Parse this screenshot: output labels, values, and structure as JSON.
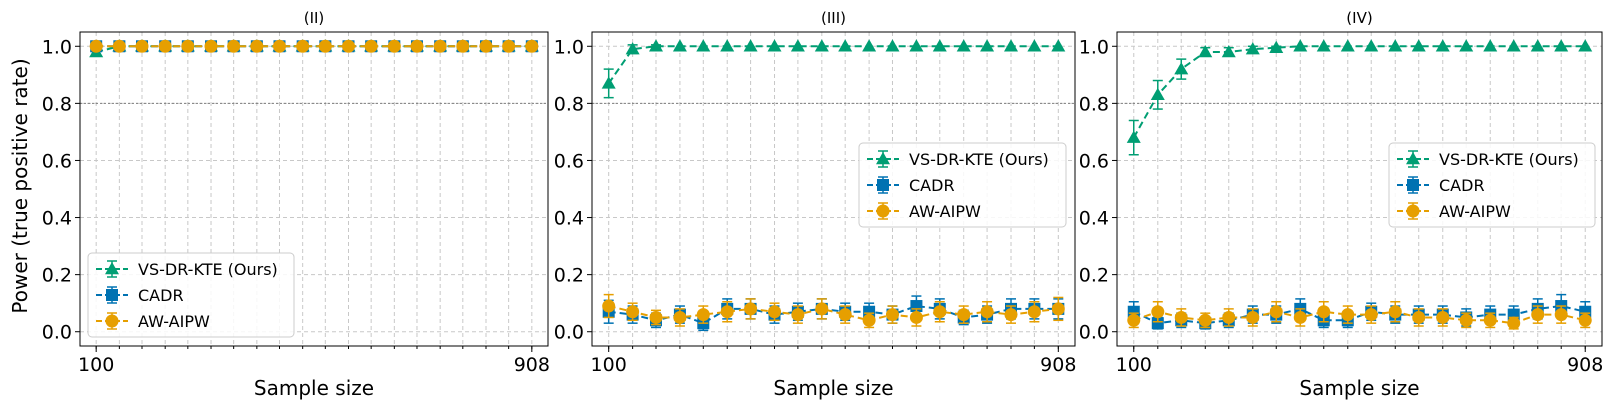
{
  "figure": {
    "ylabel": "Power (true positive rate)",
    "xlabel": "Sample size",
    "reference_line": 0.8
  },
  "colors": {
    "VS-DR-KTE (Ours)": "#009E73",
    "CADR": "#0072B2",
    "AW-AIPW": "#E69F00",
    "grid": "#c8c8c8",
    "reference": "#7f7f7f"
  },
  "chart_data": [
    {
      "type": "line",
      "title": "(II)",
      "xlabel": "Sample size",
      "ylabel": "Power (true positive rate)",
      "x": [
        100,
        143,
        185,
        228,
        270,
        313,
        355,
        398,
        440,
        483,
        525,
        568,
        610,
        653,
        695,
        738,
        780,
        823,
        865,
        908
      ],
      "xticks": [
        100,
        908
      ],
      "xlim": [
        70,
        938
      ],
      "ylim": [
        -0.05,
        1.05
      ],
      "yticks": [
        "0.0",
        "0.2",
        "0.4",
        "0.6",
        "0.8",
        "1.0"
      ],
      "grid": true,
      "legend_position": "lower-left",
      "series": [
        {
          "name": "VS-DR-KTE (Ours)",
          "marker": "triangle",
          "values": [
            0.98,
            1,
            1,
            1,
            1,
            1,
            1,
            1,
            1,
            1,
            1,
            1,
            1,
            1,
            1,
            1,
            1,
            1,
            1,
            1
          ],
          "err": [
            0.01,
            0,
            0,
            0,
            0,
            0,
            0,
            0,
            0,
            0,
            0,
            0,
            0,
            0,
            0,
            0,
            0,
            0,
            0,
            0
          ]
        },
        {
          "name": "CADR",
          "marker": "square",
          "values": [
            1,
            1,
            1,
            1,
            1,
            1,
            1,
            1,
            1,
            1,
            1,
            1,
            1,
            1,
            1,
            1,
            1,
            1,
            1,
            1
          ],
          "err": [
            0,
            0,
            0,
            0,
            0,
            0,
            0,
            0,
            0,
            0,
            0,
            0,
            0,
            0,
            0,
            0,
            0,
            0,
            0,
            0
          ]
        },
        {
          "name": "AW-AIPW",
          "marker": "circle",
          "values": [
            1,
            1,
            1,
            1,
            1,
            1,
            1,
            1,
            1,
            1,
            1,
            1,
            1,
            1,
            1,
            1,
            1,
            1,
            1,
            1
          ],
          "err": [
            0,
            0,
            0,
            0,
            0,
            0,
            0,
            0,
            0,
            0,
            0,
            0,
            0,
            0,
            0,
            0,
            0,
            0,
            0,
            0
          ]
        }
      ]
    },
    {
      "type": "line",
      "title": "(III)",
      "xlabel": "Sample size",
      "ylabel": "",
      "x": [
        100,
        143,
        185,
        228,
        270,
        313,
        355,
        398,
        440,
        483,
        525,
        568,
        610,
        653,
        695,
        738,
        780,
        823,
        865,
        908
      ],
      "xticks": [
        100,
        908
      ],
      "xlim": [
        70,
        938
      ],
      "ylim": [
        -0.05,
        1.05
      ],
      "yticks": [
        "0.0",
        "0.2",
        "0.4",
        "0.6",
        "0.8",
        "1.0"
      ],
      "grid": true,
      "legend_position": "center-right",
      "series": [
        {
          "name": "VS-DR-KTE (Ours)",
          "marker": "triangle",
          "values": [
            0.87,
            0.99,
            1,
            1,
            1,
            1,
            1,
            1,
            1,
            1,
            1,
            1,
            1,
            1,
            1,
            1,
            1,
            1,
            1,
            1
          ],
          "err": [
            0.05,
            0.015,
            0.005,
            0,
            0,
            0,
            0,
            0,
            0,
            0,
            0,
            0,
            0,
            0,
            0,
            0,
            0,
            0,
            0,
            0
          ]
        },
        {
          "name": "CADR",
          "marker": "square",
          "values": [
            0.07,
            0.06,
            0.04,
            0.06,
            0.03,
            0.08,
            0.08,
            0.06,
            0.07,
            0.08,
            0.07,
            0.07,
            0.06,
            0.09,
            0.08,
            0.05,
            0.06,
            0.08,
            0.08,
            0.08
          ],
          "err": [
            0.04,
            0.03,
            0.025,
            0.03,
            0.025,
            0.035,
            0.035,
            0.03,
            0.03,
            0.035,
            0.03,
            0.03,
            0.03,
            0.035,
            0.035,
            0.025,
            0.03,
            0.035,
            0.035,
            0.035
          ]
        },
        {
          "name": "AW-AIPW",
          "marker": "circle",
          "values": [
            0.09,
            0.07,
            0.05,
            0.05,
            0.06,
            0.07,
            0.08,
            0.07,
            0.06,
            0.08,
            0.06,
            0.04,
            0.06,
            0.05,
            0.07,
            0.06,
            0.07,
            0.06,
            0.07,
            0.08
          ],
          "err": [
            0.04,
            0.03,
            0.025,
            0.03,
            0.03,
            0.035,
            0.035,
            0.03,
            0.03,
            0.035,
            0.03,
            0.025,
            0.03,
            0.03,
            0.035,
            0.03,
            0.035,
            0.03,
            0.035,
            0.04
          ]
        }
      ]
    },
    {
      "type": "line",
      "title": "(IV)",
      "xlabel": "Sample size",
      "ylabel": "",
      "x": [
        100,
        143,
        185,
        228,
        270,
        313,
        355,
        398,
        440,
        483,
        525,
        568,
        610,
        653,
        695,
        738,
        780,
        823,
        865,
        908
      ],
      "xticks": [
        100,
        908
      ],
      "xlim": [
        70,
        938
      ],
      "ylim": [
        -0.05,
        1.05
      ],
      "yticks": [
        "0.0",
        "0.2",
        "0.4",
        "0.6",
        "0.8",
        "1.0"
      ],
      "grid": true,
      "legend_position": "center-right",
      "series": [
        {
          "name": "VS-DR-KTE (Ours)",
          "marker": "triangle",
          "values": [
            0.68,
            0.83,
            0.92,
            0.98,
            0.98,
            0.99,
            0.995,
            1,
            1,
            1,
            1,
            1,
            1,
            1,
            1,
            1,
            1,
            1,
            1,
            1
          ],
          "err": [
            0.06,
            0.05,
            0.035,
            0.015,
            0.015,
            0.01,
            0.005,
            0,
            0,
            0,
            0,
            0,
            0,
            0,
            0,
            0,
            0,
            0,
            0,
            0
          ]
        },
        {
          "name": "CADR",
          "marker": "square",
          "values": [
            0.07,
            0.03,
            0.04,
            0.03,
            0.04,
            0.06,
            0.06,
            0.08,
            0.04,
            0.04,
            0.07,
            0.06,
            0.06,
            0.06,
            0.05,
            0.06,
            0.06,
            0.08,
            0.09,
            0.07
          ],
          "err": [
            0.035,
            0.02,
            0.025,
            0.02,
            0.025,
            0.03,
            0.03,
            0.035,
            0.025,
            0.025,
            0.03,
            0.03,
            0.03,
            0.03,
            0.03,
            0.03,
            0.03,
            0.035,
            0.04,
            0.035
          ]
        },
        {
          "name": "AW-AIPW",
          "marker": "circle",
          "values": [
            0.04,
            0.07,
            0.05,
            0.04,
            0.05,
            0.05,
            0.07,
            0.05,
            0.07,
            0.06,
            0.06,
            0.07,
            0.05,
            0.05,
            0.04,
            0.04,
            0.03,
            0.06,
            0.06,
            0.04
          ],
          "err": [
            0.025,
            0.035,
            0.03,
            0.025,
            0.03,
            0.03,
            0.035,
            0.03,
            0.035,
            0.03,
            0.03,
            0.035,
            0.03,
            0.03,
            0.025,
            0.025,
            0.02,
            0.03,
            0.03,
            0.025
          ]
        }
      ]
    }
  ]
}
